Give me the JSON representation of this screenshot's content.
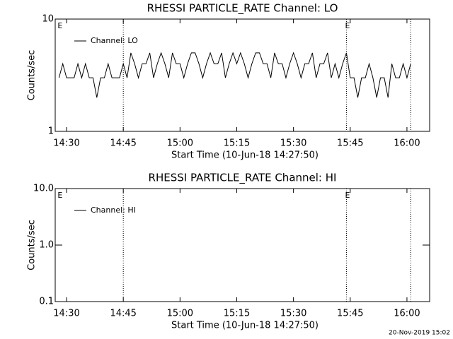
{
  "chart_data": [
    {
      "type": "line",
      "title": "RHESSI PARTICLE_RATE Channel: LO",
      "xlabel": "Start Time (10-Jun-18 14:27:50)",
      "ylabel": "Counts/sec",
      "x": [
        "14:28",
        "14:29",
        "14:30",
        "14:31",
        "14:32",
        "14:33",
        "14:34",
        "14:35",
        "14:36",
        "14:37",
        "14:38",
        "14:39",
        "14:40",
        "14:41",
        "14:42",
        "14:43",
        "14:44",
        "14:45",
        "14:46",
        "14:47",
        "14:48",
        "14:49",
        "14:50",
        "14:51",
        "14:52",
        "14:53",
        "14:54",
        "14:55",
        "14:56",
        "14:57",
        "14:58",
        "14:59",
        "15:00",
        "15:01",
        "15:02",
        "15:03",
        "15:04",
        "15:05",
        "15:06",
        "15:07",
        "15:08",
        "15:09",
        "15:10",
        "15:11",
        "15:12",
        "15:13",
        "15:14",
        "15:15",
        "15:16",
        "15:17",
        "15:18",
        "15:19",
        "15:20",
        "15:21",
        "15:22",
        "15:23",
        "15:24",
        "15:25",
        "15:26",
        "15:27",
        "15:28",
        "15:29",
        "15:30",
        "15:31",
        "15:32",
        "15:33",
        "15:34",
        "15:35",
        "15:36",
        "15:37",
        "15:38",
        "15:39",
        "15:40",
        "15:41",
        "15:42",
        "15:43",
        "15:44",
        "15:45",
        "15:46",
        "15:47",
        "15:48",
        "15:49",
        "15:50",
        "15:51",
        "15:52",
        "15:53",
        "15:54",
        "15:55",
        "15:56",
        "15:57",
        "15:58",
        "15:59",
        "16:00",
        "16:01"
      ],
      "series": [
        {
          "name": "Channel: LO",
          "color": "#000000",
          "values": [
            3,
            4,
            3,
            3,
            3,
            4,
            3,
            4,
            3,
            3,
            2,
            3,
            3,
            4,
            3,
            3,
            3,
            4,
            3,
            5,
            4,
            3,
            4,
            4,
            5,
            3,
            4,
            5,
            4,
            3,
            5,
            4,
            4,
            3,
            4,
            5,
            5,
            4,
            3,
            4,
            5,
            4,
            4,
            5,
            3,
            4,
            5,
            4,
            5,
            4,
            3,
            4,
            5,
            5,
            4,
            4,
            3,
            5,
            4,
            4,
            3,
            4,
            5,
            4,
            3,
            4,
            4,
            5,
            3,
            4,
            4,
            5,
            3,
            4,
            3,
            4,
            5,
            3,
            3,
            2,
            3,
            3,
            4,
            3,
            2,
            3,
            3,
            2,
            4,
            3,
            3,
            4,
            3,
            4
          ]
        }
      ],
      "xlim": [
        "14:27",
        "16:06"
      ],
      "xticks": [
        "14:30",
        "14:45",
        "15:00",
        "15:15",
        "15:30",
        "15:45",
        "16:00"
      ],
      "ylim": [
        1,
        10
      ],
      "yticks": [
        1,
        10
      ],
      "log_y": true,
      "legend": "upper left",
      "vlines": [
        "14:45",
        "15:44",
        "16:01"
      ],
      "flags": [
        {
          "time": "14:28",
          "label": "E"
        },
        {
          "time": "15:44",
          "label": "E"
        }
      ]
    },
    {
      "type": "line",
      "title": "RHESSI PARTICLE_RATE Channel: HI",
      "xlabel": "Start Time (10-Jun-18 14:27:50)",
      "ylabel": "Counts/sec",
      "x": [],
      "series": [
        {
          "name": "Channel: HI",
          "color": "#000000",
          "values": []
        }
      ],
      "xlim": [
        "14:27",
        "16:06"
      ],
      "xticks": [
        "14:30",
        "14:45",
        "15:00",
        "15:15",
        "15:30",
        "15:45",
        "16:00"
      ],
      "ylim": [
        0.1,
        10
      ],
      "yticks": [
        0.1,
        {
          "value": 1,
          "label": "1.0"
        },
        {
          "value": 10,
          "label": "10.0"
        }
      ],
      "log_y": true,
      "legend": "upper left",
      "vlines": [
        "14:45",
        "15:44",
        "16:01"
      ],
      "flags": [
        {
          "time": "14:28",
          "label": "E"
        },
        {
          "time": "15:44",
          "label": "E"
        }
      ]
    }
  ],
  "footer": "20-Nov-2019 15:02"
}
